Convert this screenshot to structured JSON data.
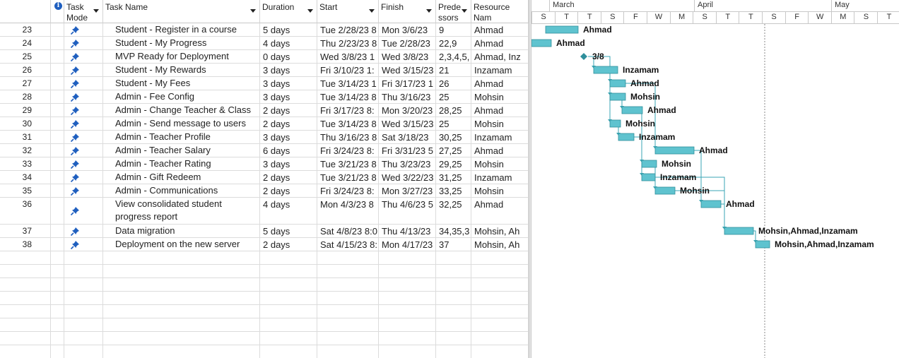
{
  "columns": {
    "info_icon": "info-icon",
    "task_mode": "Task Mode",
    "task_name": "Task Name",
    "duration": "Duration",
    "start": "Start",
    "finish": "Finish",
    "predecessors": "Prede ssors",
    "resource_names": "Resource Nam"
  },
  "tasks": [
    {
      "id": "23",
      "name": "Student - Register in a course",
      "duration": "5 days",
      "start": "Tue 2/28/23 8",
      "finish": "Mon 3/6/23",
      "pred": "9",
      "res": "Ahmad",
      "bar_label": "Ahmad"
    },
    {
      "id": "24",
      "name": "Student - My Progress",
      "duration": "4 days",
      "start": "Thu 2/23/23 8",
      "finish": "Tue 2/28/23",
      "pred": "22,9",
      "res": "Ahmad",
      "bar_label": "Ahmad"
    },
    {
      "id": "25",
      "name": "MVP Ready for Deployment",
      "duration": "0 days",
      "start": "Wed 3/8/23 1",
      "finish": "Wed 3/8/23",
      "pred": "2,3,4,5,",
      "res": "Ahmad, Inz",
      "bar_label": "3/8"
    },
    {
      "id": "26",
      "name": "Student - My Rewards",
      "duration": "3 days",
      "start": "Fri 3/10/23 1:",
      "finish": "Wed 3/15/23",
      "pred": "21",
      "res": "Inzamam",
      "bar_label": "Inzamam"
    },
    {
      "id": "27",
      "name": "Student - My Fees",
      "duration": "3 days",
      "start": "Tue 3/14/23 1",
      "finish": "Fri 3/17/23 1",
      "pred": "26",
      "res": "Ahmad",
      "bar_label": "Ahmad"
    },
    {
      "id": "28",
      "name": "Admin - Fee Config",
      "duration": "3 days",
      "start": "Tue 3/14/23 8",
      "finish": "Thu 3/16/23",
      "pred": "25",
      "res": "Mohsin",
      "bar_label": "Mohsin"
    },
    {
      "id": "29",
      "name": "Admin - Change Teacher & Class",
      "duration": "2 days",
      "start": "Fri 3/17/23 8:",
      "finish": "Mon 3/20/23",
      "pred": "28,25",
      "res": "Ahmad",
      "bar_label": "Ahmad"
    },
    {
      "id": "30",
      "name": "Admin - Send message to users",
      "duration": "2 days",
      "start": "Tue 3/14/23 8",
      "finish": "Wed 3/15/23",
      "pred": "25",
      "res": "Mohsin",
      "bar_label": "Mohsin"
    },
    {
      "id": "31",
      "name": "Admin - Teacher Profile",
      "duration": "3 days",
      "start": "Thu 3/16/23 8",
      "finish": "Sat 3/18/23",
      "pred": "30,25",
      "res": "Inzamam",
      "bar_label": "Inzamam"
    },
    {
      "id": "32",
      "name": "Admin - Teacher Salary",
      "duration": "6 days",
      "start": "Fri 3/24/23 8:",
      "finish": "Fri 3/31/23 5",
      "pred": "27,25",
      "res": "Ahmad",
      "bar_label": "Ahmad"
    },
    {
      "id": "33",
      "name": "Admin - Teacher Rating",
      "duration": "3 days",
      "start": "Tue 3/21/23 8",
      "finish": "Thu 3/23/23",
      "pred": "29,25",
      "res": "Mohsin",
      "bar_label": "Mohsin"
    },
    {
      "id": "34",
      "name": "Admin - Gift Redeem",
      "duration": "2 days",
      "start": "Tue 3/21/23 8",
      "finish": "Wed 3/22/23",
      "pred": "31,25",
      "res": "Inzamam",
      "bar_label": "Inzamam"
    },
    {
      "id": "35",
      "name": "Admin - Communications",
      "duration": "2 days",
      "start": "Fri 3/24/23 8:",
      "finish": "Mon 3/27/23",
      "pred": "33,25",
      "res": "Mohsin",
      "bar_label": "Mohsin"
    },
    {
      "id": "36",
      "name": "View consolidated student progress report",
      "duration": "4 days",
      "start": "Mon 4/3/23 8",
      "finish": "Thu 4/6/23 5",
      "pred": "32,25",
      "res": "Ahmad",
      "bar_label": "Ahmad"
    },
    {
      "id": "37",
      "name": "Data migration",
      "duration": "5 days",
      "start": "Sat 4/8/23 8:0",
      "finish": "Thu 4/13/23",
      "pred": "34,35,3",
      "res": "Mohsin, Ah",
      "bar_label": "Mohsin,Ahmad,Inzamam"
    },
    {
      "id": "38",
      "name": "Deployment on the new server",
      "duration": "2 days",
      "start": "Sat 4/15/23 8:",
      "finish": "Mon 4/17/23",
      "pred": "37",
      "res": "Mohsin, Ah",
      "bar_label": "Mohsin,Ahmad,Inzamam"
    }
  ],
  "timeline": {
    "months": [
      "March",
      "April",
      "May"
    ],
    "ticks": [
      "S",
      "T",
      "T",
      "S",
      "F",
      "W",
      "M",
      "S",
      "T",
      "T",
      "S",
      "F",
      "W",
      "M",
      "S",
      "T"
    ]
  },
  "colors": {
    "bar": "#5fc3cf",
    "bar_edge": "#2f8f9c",
    "link": "#3aa6b4",
    "pin": "#1f5fbf"
  },
  "icons": {
    "task_mode": "pushpin-icon",
    "milestone": "diamond-icon"
  }
}
